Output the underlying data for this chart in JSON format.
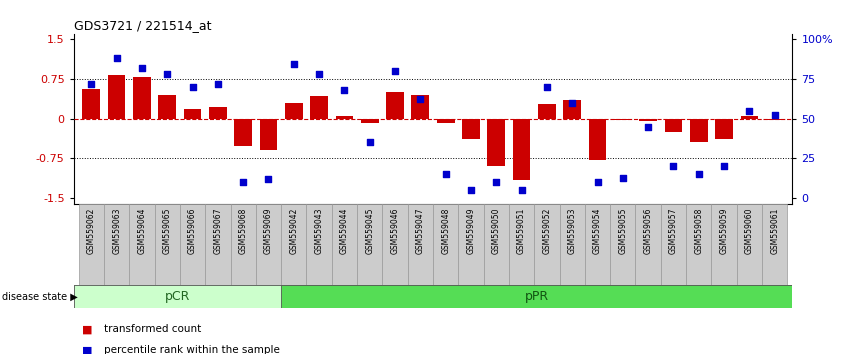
{
  "title": "GDS3721 / 221514_at",
  "samples": [
    "GSM559062",
    "GSM559063",
    "GSM559064",
    "GSM559065",
    "GSM559066",
    "GSM559067",
    "GSM559068",
    "GSM559069",
    "GSM559042",
    "GSM559043",
    "GSM559044",
    "GSM559045",
    "GSM559046",
    "GSM559047",
    "GSM559048",
    "GSM559049",
    "GSM559050",
    "GSM559051",
    "GSM559052",
    "GSM559053",
    "GSM559054",
    "GSM559055",
    "GSM559056",
    "GSM559057",
    "GSM559058",
    "GSM559059",
    "GSM559060",
    "GSM559061"
  ],
  "transformed_count": [
    0.55,
    0.82,
    0.78,
    0.45,
    0.18,
    0.22,
    -0.52,
    -0.6,
    0.3,
    0.42,
    0.05,
    -0.08,
    0.5,
    0.45,
    -0.08,
    -0.38,
    -0.9,
    -1.15,
    0.28,
    0.35,
    -0.78,
    -0.02,
    -0.05,
    -0.25,
    -0.45,
    -0.38,
    0.05,
    -0.03
  ],
  "percentile_rank": [
    72,
    88,
    82,
    78,
    70,
    72,
    10,
    12,
    84,
    78,
    68,
    35,
    80,
    62,
    15,
    5,
    10,
    5,
    70,
    60,
    10,
    13,
    45,
    20,
    15,
    20,
    55,
    52
  ],
  "pcr_count": 8,
  "ppr_count": 20,
  "ylim": [
    -1.6,
    1.6
  ],
  "yticks_left": [
    -1.5,
    -0.75,
    0.0,
    0.75,
    1.5
  ],
  "ytick_labels_left": [
    "-1.5",
    "-0.75",
    "0",
    "0.75",
    "1.5"
  ],
  "right_tick_positions": [
    -1.5,
    -0.75,
    0.0,
    0.75,
    1.5
  ],
  "right_tick_labels": [
    "0",
    "25",
    "50",
    "75",
    "100%"
  ],
  "bar_color": "#cc0000",
  "dot_color": "#0000cc",
  "pcr_color": "#ccffcc",
  "ppr_color": "#55dd55",
  "bg_color": "#cccccc",
  "zero_line_color": "#cc0000",
  "grid_color": "#000000",
  "disease_state_label": "disease state",
  "pcr_label": "pCR",
  "ppr_label": "pPR",
  "legend_bar": "transformed count",
  "legend_dot": "percentile rank within the sample"
}
